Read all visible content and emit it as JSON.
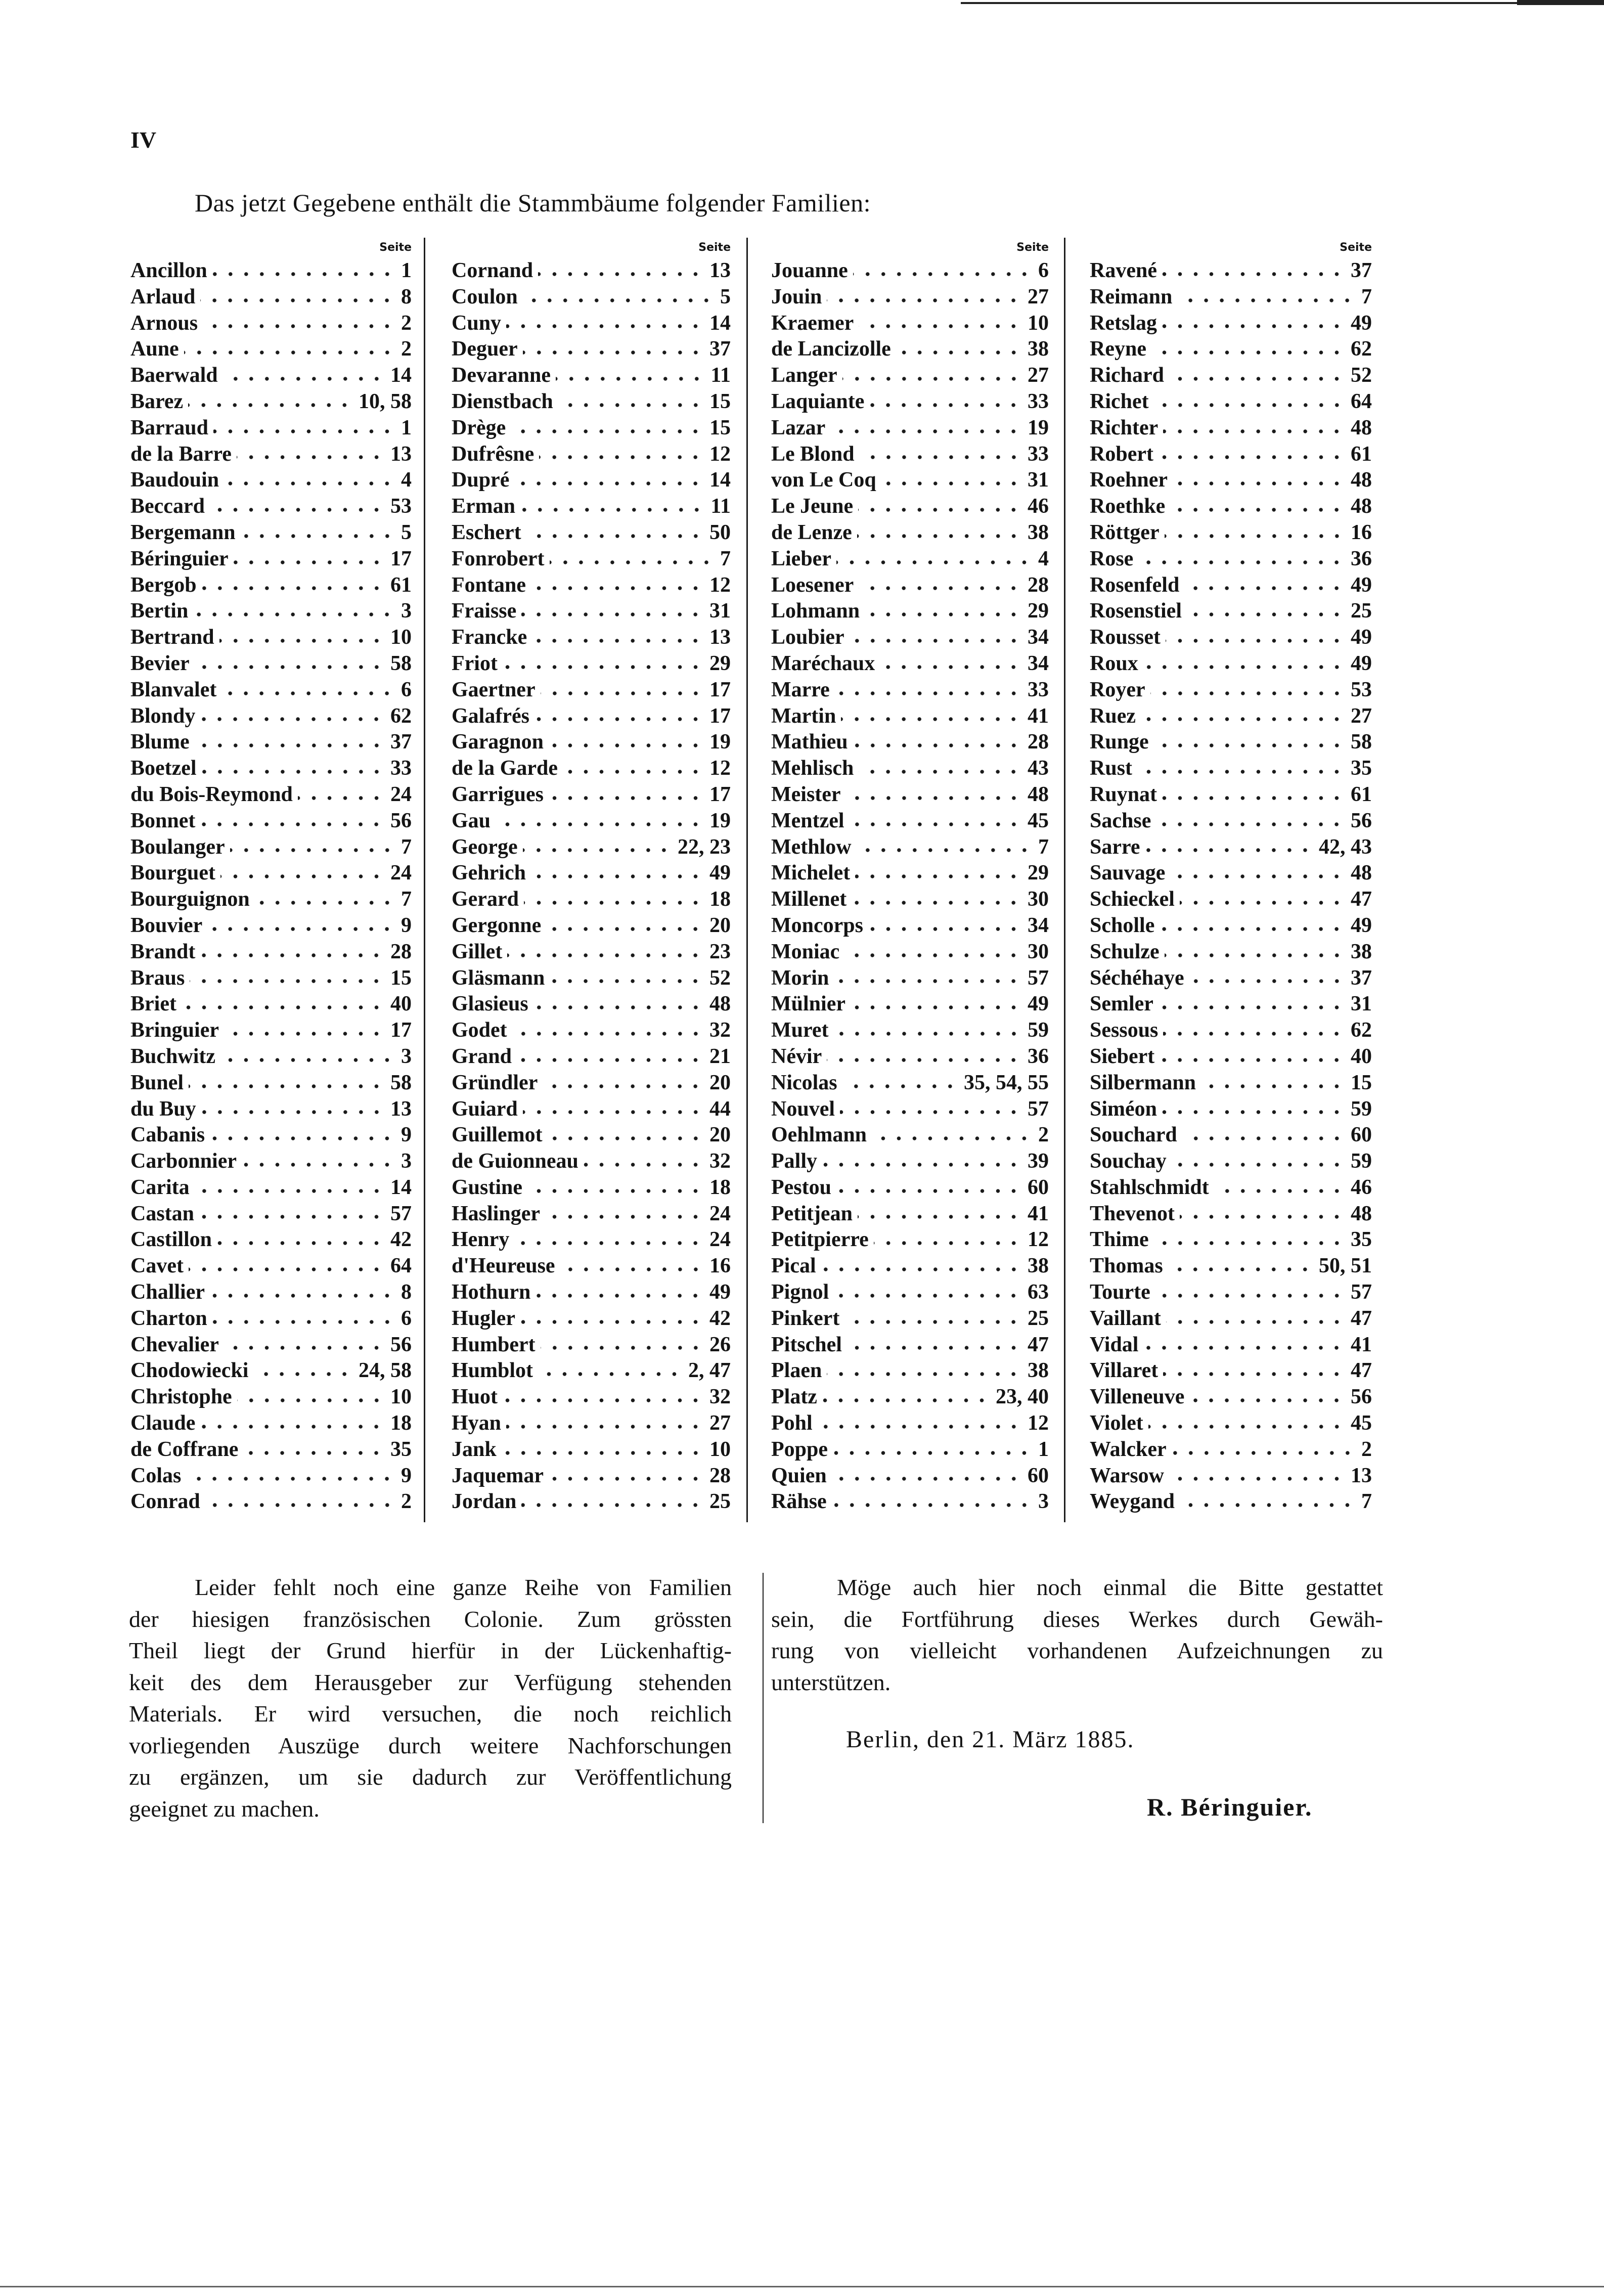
{
  "page_number": "IV",
  "heading": "Das jetzt Gegebene enthält die Stammbäume folgender Familien:",
  "column_header": "Seite",
  "columns": [
    [
      [
        "Ancillon",
        "1"
      ],
      [
        "Arlaud",
        "8"
      ],
      [
        "Arnous",
        "2"
      ],
      [
        "Aune",
        "2"
      ],
      [
        "Baerwald",
        "14"
      ],
      [
        "Barez",
        "10, 58"
      ],
      [
        "Barraud",
        "1"
      ],
      [
        "de la Barre",
        "13"
      ],
      [
        "Baudouin",
        "4"
      ],
      [
        "Beccard",
        "53"
      ],
      [
        "Bergemann",
        "5"
      ],
      [
        "Béringuier",
        "17"
      ],
      [
        "Bergob",
        "61"
      ],
      [
        "Bertin",
        "3"
      ],
      [
        "Bertrand",
        "10"
      ],
      [
        "Bevier",
        "58"
      ],
      [
        "Blanvalet",
        "6"
      ],
      [
        "Blondy",
        "62"
      ],
      [
        "Blume",
        "37"
      ],
      [
        "Boetzel",
        "33"
      ],
      [
        "du Bois-Reymond",
        "24"
      ],
      [
        "Bonnet",
        "56"
      ],
      [
        "Boulanger",
        "7"
      ],
      [
        "Bourguet",
        "24"
      ],
      [
        "Bourguignon",
        "7"
      ],
      [
        "Bouvier",
        "9"
      ],
      [
        "Brandt",
        "28"
      ],
      [
        "Braus",
        "15"
      ],
      [
        "Briet",
        "40"
      ],
      [
        "Bringuier",
        "17"
      ],
      [
        "Buchwitz",
        "3"
      ],
      [
        "Bunel",
        "58"
      ],
      [
        "du Buy",
        "13"
      ],
      [
        "Cabanis",
        "9"
      ],
      [
        "Carbonnier",
        "3"
      ],
      [
        "Carita",
        "14"
      ],
      [
        "Castan",
        "57"
      ],
      [
        "Castillon",
        "42"
      ],
      [
        "Cavet",
        "64"
      ],
      [
        "Challier",
        "8"
      ],
      [
        "Charton",
        "6"
      ],
      [
        "Chevalier",
        "56"
      ],
      [
        "Chodowiecki",
        "24, 58"
      ],
      [
        "Christophe",
        "10"
      ],
      [
        "Claude",
        "18"
      ],
      [
        "de Coffrane",
        "35"
      ],
      [
        "Colas",
        "9"
      ],
      [
        "Conrad",
        "2"
      ]
    ],
    [
      [
        "Cornand",
        "13"
      ],
      [
        "Coulon",
        "5"
      ],
      [
        "Cuny",
        "14"
      ],
      [
        "Deguer",
        "37"
      ],
      [
        "Devaranne",
        "11"
      ],
      [
        "Dienstbach",
        "15"
      ],
      [
        "Drège",
        "15"
      ],
      [
        "Dufrêsne",
        "12"
      ],
      [
        "Dupré",
        "14"
      ],
      [
        "Erman",
        "11"
      ],
      [
        "Eschert",
        "50"
      ],
      [
        "Fonrobert",
        "7"
      ],
      [
        "Fontane",
        "12"
      ],
      [
        "Fraisse",
        "31"
      ],
      [
        "Francke",
        "13"
      ],
      [
        "Friot",
        "29"
      ],
      [
        "Gaertner",
        "17"
      ],
      [
        "Galafrés",
        "17"
      ],
      [
        "Garagnon",
        "19"
      ],
      [
        "de la Garde",
        "12"
      ],
      [
        "Garrigues",
        "17"
      ],
      [
        "Gau",
        "19"
      ],
      [
        "George",
        "22, 23"
      ],
      [
        "Gehrich",
        "49"
      ],
      [
        "Gerard",
        "18"
      ],
      [
        "Gergonne",
        "20"
      ],
      [
        "Gillet",
        "23"
      ],
      [
        "Gläsmann",
        "52"
      ],
      [
        "Glasieus",
        "48"
      ],
      [
        "Godet",
        "32"
      ],
      [
        "Grand",
        "21"
      ],
      [
        "Gründler",
        "20"
      ],
      [
        "Guiard",
        "44"
      ],
      [
        "Guillemot",
        "20"
      ],
      [
        "de Guionneau",
        "32"
      ],
      [
        "Gustine",
        "18"
      ],
      [
        "Haslinger",
        "24"
      ],
      [
        "Henry",
        "24"
      ],
      [
        "d'Heureuse",
        "16"
      ],
      [
        "Hothurn",
        "49"
      ],
      [
        "Hugler",
        "42"
      ],
      [
        "Humbert",
        "26"
      ],
      [
        "Humblot",
        "2, 47"
      ],
      [
        "Huot",
        "32"
      ],
      [
        "Hyan",
        "27"
      ],
      [
        "Jank",
        "10"
      ],
      [
        "Jaquemar",
        "28"
      ],
      [
        "Jordan",
        "25"
      ]
    ],
    [
      [
        "Jouanne",
        "6"
      ],
      [
        "Jouin",
        "27"
      ],
      [
        "Kraemer",
        "10"
      ],
      [
        "de Lancizolle",
        "38"
      ],
      [
        "Langer",
        "27"
      ],
      [
        "Laquiante",
        "33"
      ],
      [
        "Lazar",
        "19"
      ],
      [
        "Le Blond",
        "33"
      ],
      [
        "von Le Coq",
        "31"
      ],
      [
        "Le Jeune",
        "46"
      ],
      [
        "de Lenze",
        "38"
      ],
      [
        "Lieber",
        "4"
      ],
      [
        "Loesener",
        "28"
      ],
      [
        "Lohmann",
        "29"
      ],
      [
        "Loubier",
        "34"
      ],
      [
        "Maréchaux",
        "34"
      ],
      [
        "Marre",
        "33"
      ],
      [
        "Martin",
        "41"
      ],
      [
        "Mathieu",
        "28"
      ],
      [
        "Mehlisch",
        "43"
      ],
      [
        "Meister",
        "48"
      ],
      [
        "Mentzel",
        "45"
      ],
      [
        "Methlow",
        "7"
      ],
      [
        "Michelet",
        "29"
      ],
      [
        "Millenet",
        "30"
      ],
      [
        "Moncorps",
        "34"
      ],
      [
        "Moniac",
        "30"
      ],
      [
        "Morin",
        "57"
      ],
      [
        "Mülnier",
        "49"
      ],
      [
        "Muret",
        "59"
      ],
      [
        "Névir",
        "36"
      ],
      [
        "Nicolas",
        "35, 54, 55"
      ],
      [
        "Nouvel",
        "57"
      ],
      [
        "Oehlmann",
        "2"
      ],
      [
        "Pally",
        "39"
      ],
      [
        "Pestou",
        "60"
      ],
      [
        "Petitjean",
        "41"
      ],
      [
        "Petitpierre",
        "12"
      ],
      [
        "Pical",
        "38"
      ],
      [
        "Pignol",
        "63"
      ],
      [
        "Pinkert",
        "25"
      ],
      [
        "Pitschel",
        "47"
      ],
      [
        "Plaen",
        "38"
      ],
      [
        "Platz",
        "23, 40"
      ],
      [
        "Pohl",
        "12"
      ],
      [
        "Poppe",
        "1"
      ],
      [
        "Quien",
        "60"
      ],
      [
        "Rähse",
        "3"
      ]
    ],
    [
      [
        "Ravené",
        "37"
      ],
      [
        "Reimann",
        "7"
      ],
      [
        "Retslag",
        "49"
      ],
      [
        "Reyne",
        "62"
      ],
      [
        "Richard",
        "52"
      ],
      [
        "Richet",
        "64"
      ],
      [
        "Richter",
        "48"
      ],
      [
        "Robert",
        "61"
      ],
      [
        "Roehner",
        "48"
      ],
      [
        "Roethke",
        "48"
      ],
      [
        "Röttger",
        "16"
      ],
      [
        "Rose",
        "36"
      ],
      [
        "Rosenfeld",
        "49"
      ],
      [
        "Rosenstiel",
        "25"
      ],
      [
        "Rousset",
        "49"
      ],
      [
        "Roux",
        "49"
      ],
      [
        "Royer",
        "53"
      ],
      [
        "Ruez",
        "27"
      ],
      [
        "Runge",
        "58"
      ],
      [
        "Rust",
        "35"
      ],
      [
        "Ruynat",
        "61"
      ],
      [
        "Sachse",
        "56"
      ],
      [
        "Sarre",
        "42, 43"
      ],
      [
        "Sauvage",
        "48"
      ],
      [
        "Schieckel",
        "47"
      ],
      [
        "Scholle",
        "49"
      ],
      [
        "Schulze",
        "38"
      ],
      [
        "Séchéhaye",
        "37"
      ],
      [
        "Semler",
        "31"
      ],
      [
        "Sessous",
        "62"
      ],
      [
        "Siebert",
        "40"
      ],
      [
        "Silbermann",
        "15"
      ],
      [
        "Siméon",
        "59"
      ],
      [
        "Souchard",
        "60"
      ],
      [
        "Souchay",
        "59"
      ],
      [
        "Stahlschmidt",
        "46"
      ],
      [
        "Thevenot",
        "48"
      ],
      [
        "Thime",
        "35"
      ],
      [
        "Thomas",
        "50, 51"
      ],
      [
        "Tourte",
        "57"
      ],
      [
        "Vaillant",
        "47"
      ],
      [
        "Vidal",
        "41"
      ],
      [
        "Villaret",
        "47"
      ],
      [
        "Villeneuve",
        "56"
      ],
      [
        "Violet",
        "45"
      ],
      [
        "Walcker",
        "2"
      ],
      [
        "Warsow",
        "13"
      ],
      [
        "Weygand",
        "7"
      ]
    ]
  ],
  "note_left": [
    "Leider fehlt noch eine ganze Reihe von Familien",
    "der hiesigen französischen Colonie.  Zum grössten",
    "Theil liegt der Grund hierfür in der Lückenhaftig-",
    "keit des dem Herausgeber zur Verfügung stehenden",
    "Materials.  Er wird versuchen, die noch reichlich",
    "vorliegenden Auszüge durch weitere Nachforschungen",
    "zu ergänzen, um sie dadurch zur Veröffentlichung",
    "geeignet zu machen."
  ],
  "note_right": [
    "Möge auch hier noch einmal die Bitte gestattet",
    "sein, die Fortführung dieses Werkes durch Gewäh-",
    "rung von vielleicht vorhandenen Aufzeichnungen zu",
    "unterstützen."
  ],
  "place_date": "Berlin, den 21. März 1885.",
  "signature": "R. Béringuier."
}
